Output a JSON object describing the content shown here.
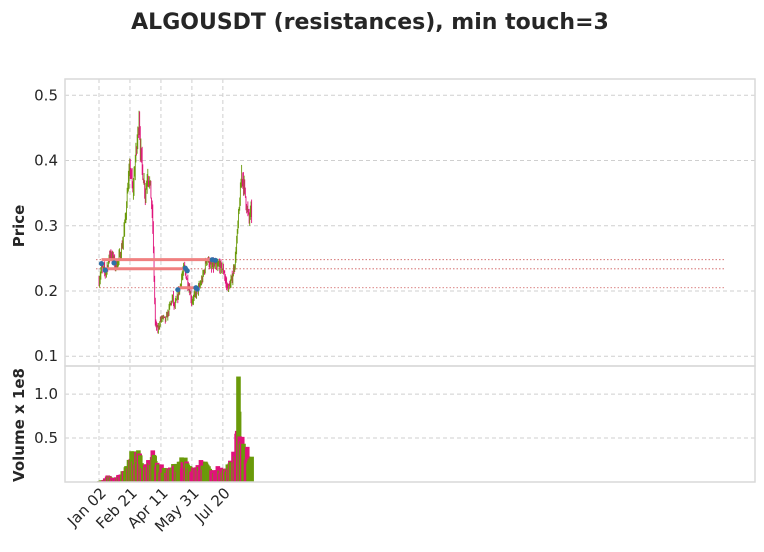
{
  "chart_data": [
    {
      "type": "candlestick",
      "title": "ALGOUSDT (resistances), min touch=3",
      "ylabel": "Price",
      "ylim": [
        0.085,
        0.525
      ],
      "yticks": [
        "0.1",
        "0.2",
        "0.3",
        "0.4",
        "0.5"
      ],
      "xticks": [
        "Jan 02",
        "Feb 21",
        "Apr 11",
        "May 31",
        "Jul 20"
      ],
      "grid": true,
      "colors": {
        "up": "#6a9a0a",
        "down": "#e0137a",
        "resistance": "#f08080",
        "touch_point": "#2f6fa8",
        "faint_level": "#cd5c5c"
      },
      "close_path": [
        [
          0,
          0.215
        ],
        [
          4,
          0.235
        ],
        [
          8,
          0.232
        ],
        [
          10,
          0.228
        ],
        [
          14,
          0.24
        ],
        [
          18,
          0.26
        ],
        [
          22,
          0.25
        ],
        [
          26,
          0.24
        ],
        [
          30,
          0.245
        ],
        [
          34,
          0.255
        ],
        [
          38,
          0.275
        ],
        [
          42,
          0.31
        ],
        [
          46,
          0.36
        ],
        [
          50,
          0.39
        ],
        [
          54,
          0.35
        ],
        [
          58,
          0.4
        ],
        [
          62,
          0.44
        ],
        [
          64,
          0.47
        ],
        [
          66,
          0.42
        ],
        [
          70,
          0.38
        ],
        [
          74,
          0.35
        ],
        [
          78,
          0.38
        ],
        [
          82,
          0.36
        ],
        [
          86,
          0.3
        ],
        [
          88,
          0.22
        ],
        [
          90,
          0.15
        ],
        [
          94,
          0.14
        ],
        [
          98,
          0.155
        ],
        [
          102,
          0.16
        ],
        [
          106,
          0.155
        ],
        [
          110,
          0.165
        ],
        [
          114,
          0.18
        ],
        [
          118,
          0.19
        ],
        [
          120,
          0.175
        ],
        [
          124,
          0.185
        ],
        [
          128,
          0.2
        ],
        [
          132,
          0.22
        ],
        [
          136,
          0.235
        ],
        [
          140,
          0.22
        ],
        [
          144,
          0.205
        ],
        [
          148,
          0.185
        ],
        [
          152,
          0.19
        ],
        [
          156,
          0.2
        ],
        [
          160,
          0.205
        ],
        [
          164,
          0.215
        ],
        [
          168,
          0.23
        ],
        [
          172,
          0.25
        ],
        [
          176,
          0.245
        ],
        [
          180,
          0.235
        ],
        [
          184,
          0.24
        ],
        [
          188,
          0.235
        ],
        [
          192,
          0.24
        ],
        [
          196,
          0.235
        ],
        [
          200,
          0.23
        ],
        [
          202,
          0.215
        ],
        [
          206,
          0.205
        ],
        [
          210,
          0.21
        ],
        [
          214,
          0.225
        ],
        [
          218,
          0.25
        ],
        [
          222,
          0.3
        ],
        [
          226,
          0.35
        ],
        [
          228,
          0.38
        ],
        [
          232,
          0.36
        ],
        [
          236,
          0.33
        ],
        [
          240,
          0.31
        ],
        [
          242,
          0.32
        ]
      ],
      "resistance_levels": [
        {
          "price": 0.248,
          "from": 4,
          "to": 186
        },
        {
          "price": 0.234,
          "from": 10,
          "to": 140
        },
        {
          "price": 0.205,
          "from": 126,
          "to": 158
        }
      ],
      "touch_points": [
        [
          4,
          0.242
        ],
        [
          10,
          0.232
        ],
        [
          24,
          0.243
        ],
        [
          126,
          0.202
        ],
        [
          138,
          0.235
        ],
        [
          141,
          0.231
        ],
        [
          155,
          0.205
        ],
        [
          157,
          0.203
        ],
        [
          181,
          0.248
        ],
        [
          186,
          0.247
        ]
      ],
      "faint_levels": [
        0.248,
        0.234,
        0.205
      ]
    },
    {
      "type": "bar",
      "ylabel": "Volume x 1e8",
      "ylim": [
        0,
        1.32
      ],
      "yticks": [
        "0.5",
        "1.0"
      ],
      "volume_path": [
        [
          0,
          0.01
        ],
        [
          8,
          0.02
        ],
        [
          14,
          0.06
        ],
        [
          20,
          0.04
        ],
        [
          26,
          0.04
        ],
        [
          30,
          0.06
        ],
        [
          34,
          0.08
        ],
        [
          38,
          0.1
        ],
        [
          42,
          0.12
        ],
        [
          46,
          0.16
        ],
        [
          50,
          0.26
        ],
        [
          54,
          0.3
        ],
        [
          58,
          0.28
        ],
        [
          62,
          0.32
        ],
        [
          66,
          0.25
        ],
        [
          70,
          0.18
        ],
        [
          74,
          0.16
        ],
        [
          78,
          0.2
        ],
        [
          82,
          0.24
        ],
        [
          86,
          0.3
        ],
        [
          90,
          0.22
        ],
        [
          94,
          0.16
        ],
        [
          98,
          0.15
        ],
        [
          102,
          0.13
        ],
        [
          106,
          0.12
        ],
        [
          110,
          0.13
        ],
        [
          114,
          0.14
        ],
        [
          118,
          0.16
        ],
        [
          122,
          0.15
        ],
        [
          126,
          0.17
        ],
        [
          130,
          0.19
        ],
        [
          134,
          0.22
        ],
        [
          138,
          0.24
        ],
        [
          142,
          0.18
        ],
        [
          146,
          0.15
        ],
        [
          150,
          0.14
        ],
        [
          154,
          0.16
        ],
        [
          158,
          0.17
        ],
        [
          162,
          0.18
        ],
        [
          166,
          0.19
        ],
        [
          170,
          0.2
        ],
        [
          174,
          0.16
        ],
        [
          178,
          0.12
        ],
        [
          182,
          0.11
        ],
        [
          186,
          0.13
        ],
        [
          190,
          0.15
        ],
        [
          194,
          0.13
        ],
        [
          198,
          0.14
        ],
        [
          202,
          0.15
        ],
        [
          206,
          0.16
        ],
        [
          210,
          0.19
        ],
        [
          214,
          0.25
        ],
        [
          218,
          0.34
        ],
        [
          220,
          0.45
        ],
        [
          224,
          0.52
        ],
        [
          228,
          0.46
        ],
        [
          232,
          0.38
        ],
        [
          236,
          0.3
        ],
        [
          240,
          0.26
        ],
        [
          242,
          0.24
        ]
      ],
      "volume_spikes": [
        [
          64,
          0.32
        ],
        [
          86,
          0.36
        ],
        [
          100,
          0.2
        ],
        [
          132,
          0.28
        ],
        [
          163,
          0.25
        ],
        [
          206,
          0.2
        ],
        [
          220,
          0.55
        ],
        [
          223,
          1.2
        ],
        [
          224,
          0.8
        ],
        [
          227,
          0.43
        ],
        [
          233,
          0.26
        ],
        [
          237,
          0.4
        ]
      ]
    }
  ]
}
